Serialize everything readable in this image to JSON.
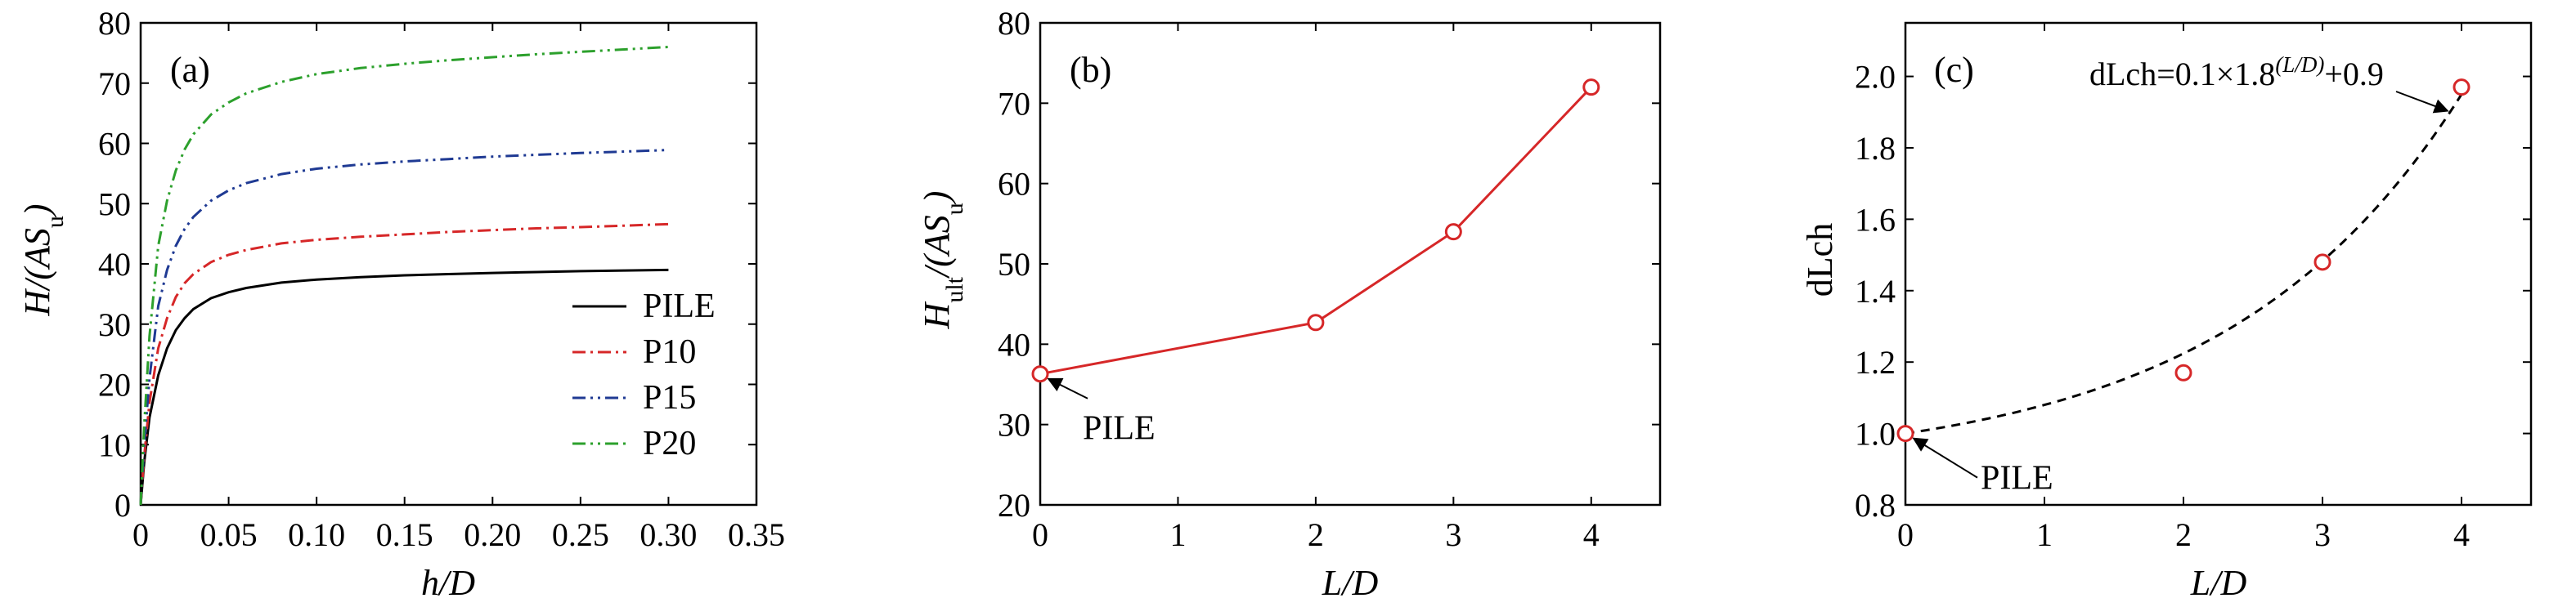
{
  "chart_data": [
    {
      "type": "line",
      "panel_label": "(a)",
      "xlabel": "h/D",
      "ylabel": "H/(AS_u)",
      "xlim": [
        0,
        0.35
      ],
      "ylim": [
        0,
        80
      ],
      "xticks": [
        0,
        0.05,
        0.1,
        0.15,
        0.2,
        0.25,
        0.3,
        0.35
      ],
      "xtick_labels": [
        "0",
        "0.05",
        "0.10",
        "0.15",
        "0.20",
        "0.25",
        "0.30",
        "0.35"
      ],
      "yticks": [
        0,
        10,
        20,
        30,
        40,
        50,
        60,
        70,
        80
      ],
      "ytick_labels": [
        "0",
        "10",
        "20",
        "30",
        "40",
        "50",
        "60",
        "70",
        "80"
      ],
      "legend": "right",
      "grid": false,
      "x": [
        0,
        0.002,
        0.005,
        0.01,
        0.015,
        0.02,
        0.025,
        0.03,
        0.04,
        0.05,
        0.06,
        0.08,
        0.1,
        0.125,
        0.15,
        0.175,
        0.2,
        0.225,
        0.25,
        0.275,
        0.3
      ],
      "series": [
        {
          "name": "PILE",
          "color": "#000000",
          "dash": "solid",
          "values": [
            0,
            7,
            14.5,
            21.5,
            26,
            29,
            31,
            32.5,
            34.3,
            35.3,
            36,
            36.9,
            37.4,
            37.8,
            38.1,
            38.3,
            38.5,
            38.65,
            38.8,
            38.9,
            39
          ]
        },
        {
          "name": "P10",
          "color": "#d62728",
          "dash": "dashdot",
          "values": [
            0,
            8,
            17,
            26,
            31,
            34.5,
            36.8,
            38.3,
            40.3,
            41.5,
            42.3,
            43.4,
            44,
            44.5,
            44.9,
            45.3,
            45.6,
            45.9,
            46.1,
            46.35,
            46.6
          ]
        },
        {
          "name": "P15",
          "color": "#1f3a93",
          "dash": "dashdotdot",
          "values": [
            0,
            10,
            21,
            33,
            39,
            43,
            45.8,
            47.8,
            50.5,
            52.2,
            53.4,
            54.9,
            55.8,
            56.5,
            57,
            57.4,
            57.8,
            58.1,
            58.4,
            58.65,
            58.9
          ]
        },
        {
          "name": "P20",
          "color": "#2ca02c",
          "dash": "dashdotdot",
          "values": [
            0,
            13,
            28,
            43,
            50.5,
            55.5,
            59,
            61.5,
            64.8,
            66.8,
            68.3,
            70.2,
            71.5,
            72.5,
            73.2,
            73.8,
            74.3,
            74.8,
            75.2,
            75.6,
            76
          ]
        }
      ]
    },
    {
      "type": "line",
      "panel_label": "(b)",
      "xlabel": "L/D",
      "ylabel": "H_ult/(AS_u)",
      "xlim": [
        0,
        4.5
      ],
      "ylim": [
        20,
        80
      ],
      "xticks": [
        0,
        1,
        2,
        3,
        4
      ],
      "xtick_labels": [
        "0",
        "1",
        "2",
        "3",
        "4"
      ],
      "yticks": [
        20,
        30,
        40,
        50,
        60,
        70,
        80
      ],
      "ytick_labels": [
        "20",
        "30",
        "40",
        "50",
        "60",
        "70",
        "80"
      ],
      "grid": false,
      "x": [
        0,
        2,
        3,
        4
      ],
      "values": [
        36.3,
        42.7,
        54,
        72
      ],
      "color": "#d62728",
      "annotation": {
        "text": "PILE",
        "x": 0,
        "y": 36.3
      }
    },
    {
      "type": "scatter",
      "panel_label": "(c)",
      "xlabel": "L/D",
      "ylabel": "dLch",
      "xlim": [
        0,
        4.5
      ],
      "ylim": [
        0.8,
        2.15
      ],
      "xticks": [
        0,
        1,
        2,
        3,
        4
      ],
      "xtick_labels": [
        "0",
        "1",
        "2",
        "3",
        "4"
      ],
      "yticks": [
        0.8,
        1.0,
        1.2,
        1.4,
        1.6,
        1.8,
        2.0
      ],
      "ytick_labels": [
        "0.8",
        "1.0",
        "1.2",
        "1.4",
        "1.6",
        "1.8",
        "2.0"
      ],
      "grid": false,
      "x": [
        0,
        2,
        3,
        4
      ],
      "values": [
        1.0,
        1.17,
        1.48,
        1.97
      ],
      "color": "#d62728",
      "fit": {
        "a": 0.1,
        "b": 1.8,
        "c": 0.9,
        "color": "#000000",
        "dash": "dashed"
      },
      "formula": {
        "base": "dLch=0.1×1.8",
        "exponent": "(L/D)",
        "tail": "+0.9"
      },
      "annotation": {
        "text": "PILE",
        "x": 0,
        "y": 1.0
      }
    }
  ]
}
